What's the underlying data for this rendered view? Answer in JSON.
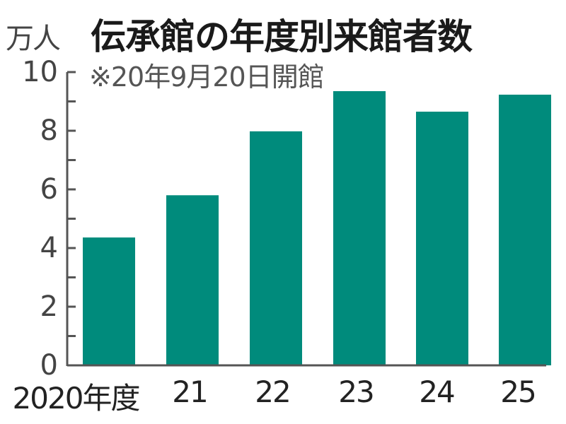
{
  "header": {
    "unit_label": "万人",
    "title": "伝承館の年度別来館者数",
    "note": "※20年9月20日開館"
  },
  "colors": {
    "bar": "#008B7C",
    "axis": "#555555"
  },
  "y_ticks": [
    "10",
    "8",
    "6",
    "4",
    "2",
    "0"
  ],
  "x_labels": [
    "2020年度",
    "21",
    "22",
    "23",
    "24",
    "25"
  ],
  "chart_data": {
    "type": "bar",
    "title": "伝承館の年度別来館者数",
    "subtitle": "※20年9月20日開館",
    "xlabel": "年度",
    "ylabel": "万人",
    "categories": [
      "2020年度",
      "21",
      "22",
      "23",
      "24",
      "25"
    ],
    "values": [
      4.36,
      5.8,
      7.98,
      9.35,
      8.65,
      9.23
    ],
    "ylim": [
      0,
      10
    ],
    "yticks": [
      0,
      2,
      4,
      6,
      8,
      10
    ],
    "minor_tick_step": 1,
    "grid": false,
    "legend": null
  }
}
